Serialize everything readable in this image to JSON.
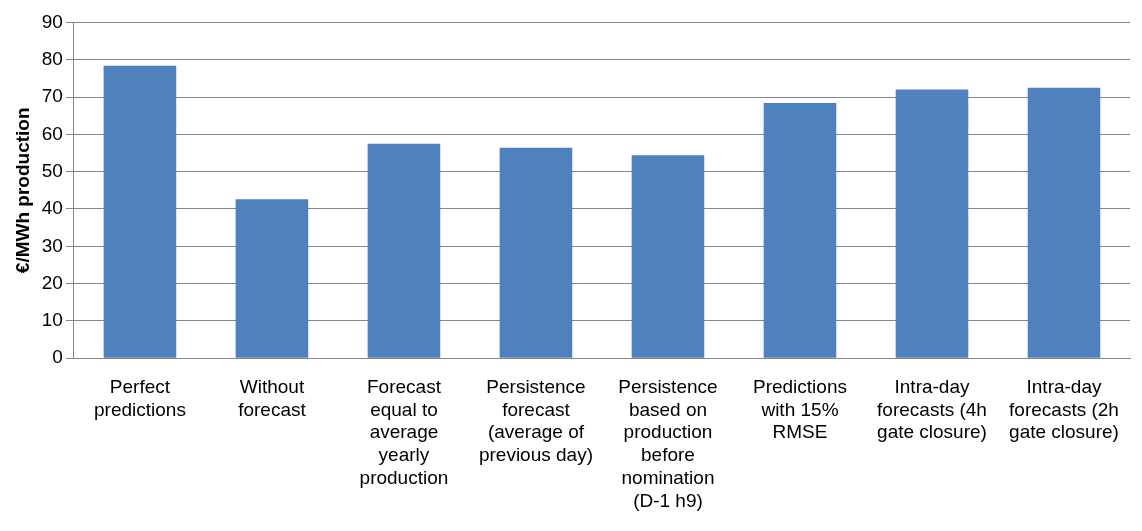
{
  "chart_data": {
    "type": "bar",
    "ylabel": "€/MWh production",
    "categories": [
      "Perfect predictions",
      "Without forecast",
      "Forecast equal to average yearly production",
      "Persistence forecast (average of previous day)",
      "Persistence based on production before nomination (D-1 h9)",
      "Predictions with 15% RMSE",
      "Intra-day forecasts (4h gate closure)",
      "Intra-day forecasts (2h gate closure)"
    ],
    "values": [
      78.4,
      42.6,
      57.5,
      56.4,
      54.4,
      68.4,
      72.0,
      72.5
    ],
    "color": "#4f81bd",
    "ylim": [
      0,
      90
    ],
    "yticks": [
      0,
      10,
      20,
      30,
      40,
      50,
      60,
      70,
      80,
      90
    ],
    "grid": "y",
    "legend": false
  }
}
